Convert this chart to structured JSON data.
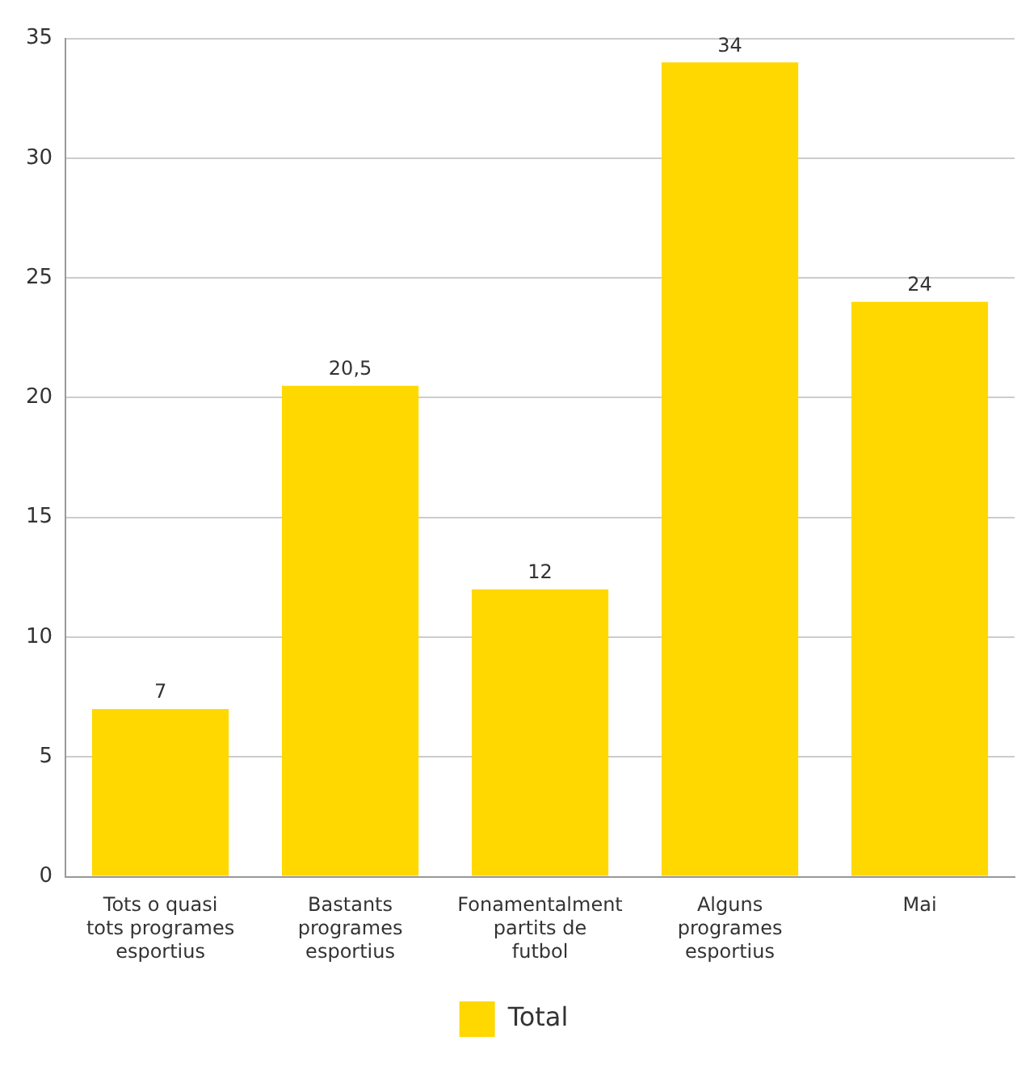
{
  "chart_data": {
    "type": "bar",
    "categories": [
      "Tots o quasi tots programes esportius",
      "Bastants programes esportius",
      "Fonamentalment partits de futbol",
      "Alguns programes esportius",
      "Mai"
    ],
    "series": [
      {
        "name": "Total",
        "color": "#ffd800",
        "values": [
          7,
          20.5,
          12,
          34,
          24
        ],
        "value_labels": [
          "7",
          "20,5",
          "12",
          "34",
          "24"
        ]
      }
    ],
    "ylim": [
      0,
      35
    ],
    "yticks": [
      0,
      5,
      10,
      15,
      20,
      25,
      30,
      35
    ],
    "grid": "y",
    "legend": "bottom"
  }
}
